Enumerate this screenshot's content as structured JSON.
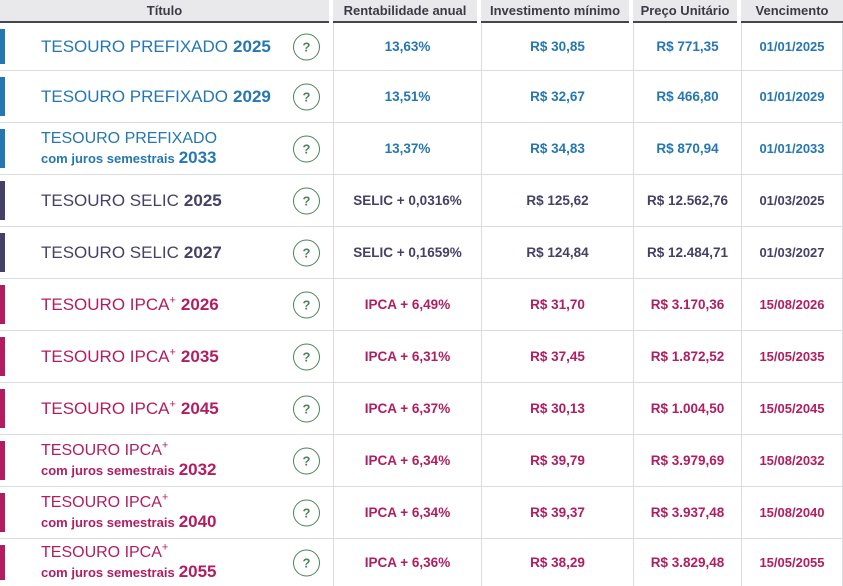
{
  "colors": {
    "prefixado": "#2577b2",
    "selic": "#454166",
    "ipca": "#b21d60",
    "help_green": "#4d8457",
    "header_bg": "#e9e9eb",
    "header_text": "#3b3b45",
    "header_border": "#45454f",
    "row_border": "#dcdce0"
  },
  "header": {
    "columns": [
      "Título",
      "Rentabilidade anual",
      "Investimento mínimo",
      "Preço Unitário",
      "Vencimento"
    ]
  },
  "help_icon_glyph": "?",
  "rows": [
    {
      "type": "prefixado",
      "name": "TESOURO PREFIXADO",
      "sup": "",
      "subtitle": "",
      "year": "2025",
      "rate": "13,63%",
      "min_investment": "R$ 30,85",
      "unit_price": "R$ 771,35",
      "maturity": "01/01/2025"
    },
    {
      "type": "prefixado",
      "name": "TESOURO PREFIXADO",
      "sup": "",
      "subtitle": "",
      "year": "2029",
      "rate": "13,51%",
      "min_investment": "R$ 32,67",
      "unit_price": "R$ 466,80",
      "maturity": "01/01/2029"
    },
    {
      "type": "prefixado",
      "name": "TESOURO PREFIXADO",
      "sup": "",
      "subtitle": "com juros semestrais",
      "year": "2033",
      "rate": "13,37%",
      "min_investment": "R$ 34,83",
      "unit_price": "R$ 870,94",
      "maturity": "01/01/2033"
    },
    {
      "type": "selic",
      "name": "TESOURO SELIC",
      "sup": "",
      "subtitle": "",
      "year": "2025",
      "rate": "SELIC + 0,0316%",
      "min_investment": "R$ 125,62",
      "unit_price": "R$ 12.562,76",
      "maturity": "01/03/2025"
    },
    {
      "type": "selic",
      "name": "TESOURO SELIC",
      "sup": "",
      "subtitle": "",
      "year": "2027",
      "rate": "SELIC + 0,1659%",
      "min_investment": "R$ 124,84",
      "unit_price": "R$ 12.484,71",
      "maturity": "01/03/2027"
    },
    {
      "type": "ipca",
      "name": "TESOURO IPCA",
      "sup": "+",
      "subtitle": "",
      "year": "2026",
      "rate": "IPCA + 6,49%",
      "min_investment": "R$ 31,70",
      "unit_price": "R$ 3.170,36",
      "maturity": "15/08/2026"
    },
    {
      "type": "ipca",
      "name": "TESOURO IPCA",
      "sup": "+",
      "subtitle": "",
      "year": "2035",
      "rate": "IPCA + 6,31%",
      "min_investment": "R$ 37,45",
      "unit_price": "R$ 1.872,52",
      "maturity": "15/05/2035"
    },
    {
      "type": "ipca",
      "name": "TESOURO IPCA",
      "sup": "+",
      "subtitle": "",
      "year": "2045",
      "rate": "IPCA + 6,37%",
      "min_investment": "R$ 30,13",
      "unit_price": "R$ 1.004,50",
      "maturity": "15/05/2045"
    },
    {
      "type": "ipca",
      "name": "TESOURO IPCA",
      "sup": "+",
      "subtitle": "com juros semestrais",
      "year": "2032",
      "rate": "IPCA + 6,34%",
      "min_investment": "R$ 39,79",
      "unit_price": "R$ 3.979,69",
      "maturity": "15/08/2032"
    },
    {
      "type": "ipca",
      "name": "TESOURO IPCA",
      "sup": "+",
      "subtitle": "com juros semestrais",
      "year": "2040",
      "rate": "IPCA + 6,34%",
      "min_investment": "R$ 39,37",
      "unit_price": "R$ 3.937,48",
      "maturity": "15/08/2040"
    },
    {
      "type": "ipca",
      "name": "TESOURO IPCA",
      "sup": "+",
      "subtitle": "com juros semestrais",
      "year": "2055",
      "rate": "IPCA + 6,36%",
      "min_investment": "R$ 38,29",
      "unit_price": "R$ 3.829,48",
      "maturity": "15/05/2055"
    }
  ]
}
